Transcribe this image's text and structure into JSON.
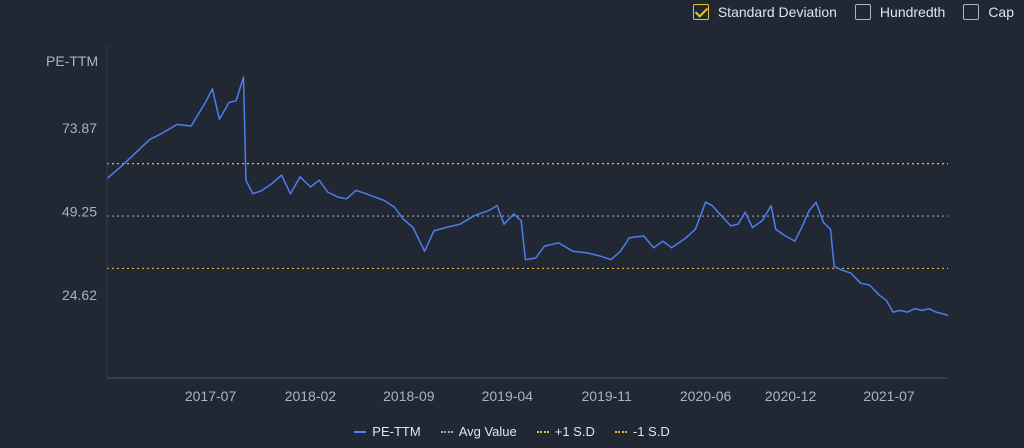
{
  "toggles": [
    {
      "label": "Standard Deviation",
      "checked": true
    },
    {
      "label": "Hundredth",
      "checked": false
    },
    {
      "label": "Cap",
      "checked": false
    }
  ],
  "colors": {
    "background": "#212833",
    "pe_line": "#4d7dee",
    "avg_line": "#a0a6b0",
    "plus_sd": "#d6c520",
    "minus_sd": "#e0b53a"
  },
  "legend": [
    {
      "label": "PE-TTM",
      "style": "solid",
      "color": "#4d7dee"
    },
    {
      "label": "Avg Value",
      "style": "dotted",
      "color": "#a0a6b0"
    },
    {
      "label": "+1 S.D",
      "style": "dotted",
      "color": "#d6c520"
    },
    {
      "label": "-1 S.D",
      "style": "dotted",
      "color": "#e0b53a"
    }
  ],
  "chart_data": {
    "type": "line",
    "title": "",
    "ylabel": "PE-TTM",
    "xlabel": "",
    "y_ticks": [
      24.62,
      49.25,
      73.87
    ],
    "y_tick_labels": [
      "24.62",
      "49.25",
      "73.87"
    ],
    "x_tick_labels": [
      "2017-07",
      "2018-02",
      "2018-09",
      "2019-04",
      "2019-11",
      "2020-06",
      "2020-12",
      "2021-07"
    ],
    "ylim": [
      0,
      98.49
    ],
    "reference_lines": {
      "avg": 47.9,
      "plus_1_sd": 63.4,
      "minus_1_sd": 32.4
    },
    "grid": false,
    "series": [
      {
        "name": "PE-TTM",
        "points": [
          [
            "2016-11-20",
            59.0
          ],
          [
            "2016-12-20",
            62.5
          ],
          [
            "2017-01-20",
            66.5
          ],
          [
            "2017-02-20",
            70.5
          ],
          [
            "2017-03-20",
            72.5
          ],
          [
            "2017-04-20",
            75.0
          ],
          [
            "2017-05-20",
            74.5
          ],
          [
            "2017-06-20",
            81.5
          ],
          [
            "2017-07-05",
            85.5
          ],
          [
            "2017-07-20",
            76.5
          ],
          [
            "2017-08-10",
            81.5
          ],
          [
            "2017-08-25",
            82.0
          ],
          [
            "2017-09-10",
            89.0
          ],
          [
            "2017-09-15",
            58.5
          ],
          [
            "2017-09-30",
            54.5
          ],
          [
            "2017-10-20",
            55.5
          ],
          [
            "2017-11-10",
            57.5
          ],
          [
            "2017-12-01",
            60.0
          ],
          [
            "2017-12-20",
            54.5
          ],
          [
            "2018-01-10",
            59.5
          ],
          [
            "2018-02-01",
            56.5
          ],
          [
            "2018-02-20",
            58.5
          ],
          [
            "2018-03-10",
            55.0
          ],
          [
            "2018-04-01",
            53.5
          ],
          [
            "2018-04-20",
            53.0
          ],
          [
            "2018-05-10",
            55.5
          ],
          [
            "2018-06-01",
            54.5
          ],
          [
            "2018-06-20",
            53.5
          ],
          [
            "2018-07-10",
            52.5
          ],
          [
            "2018-08-01",
            50.5
          ],
          [
            "2018-08-20",
            47.0
          ],
          [
            "2018-09-10",
            44.5
          ],
          [
            "2018-10-05",
            37.5
          ],
          [
            "2018-10-25",
            43.5
          ],
          [
            "2018-11-20",
            44.5
          ],
          [
            "2018-12-20",
            45.5
          ],
          [
            "2019-01-20",
            48.0
          ],
          [
            "2019-02-20",
            49.5
          ],
          [
            "2019-03-10",
            51.0
          ],
          [
            "2019-03-25",
            45.5
          ],
          [
            "2019-04-15",
            48.5
          ],
          [
            "2019-05-01",
            46.5
          ],
          [
            "2019-05-10",
            35.0
          ],
          [
            "2019-06-01",
            35.5
          ],
          [
            "2019-06-20",
            39.0
          ],
          [
            "2019-07-20",
            40.0
          ],
          [
            "2019-08-20",
            37.5
          ],
          [
            "2019-09-20",
            37.0
          ],
          [
            "2019-10-20",
            36.0
          ],
          [
            "2019-11-10",
            35.0
          ],
          [
            "2019-12-01",
            37.5
          ],
          [
            "2019-12-20",
            41.5
          ],
          [
            "2020-01-20",
            42.0
          ],
          [
            "2020-02-10",
            38.5
          ],
          [
            "2020-03-01",
            40.5
          ],
          [
            "2020-03-20",
            38.5
          ],
          [
            "2020-04-20",
            41.5
          ],
          [
            "2020-05-10",
            44.0
          ],
          [
            "2020-06-01",
            52.0
          ],
          [
            "2020-06-15",
            51.0
          ],
          [
            "2020-07-05",
            48.0
          ],
          [
            "2020-07-25",
            45.0
          ],
          [
            "2020-08-10",
            45.5
          ],
          [
            "2020-08-25",
            49.0
          ],
          [
            "2020-09-10",
            44.5
          ],
          [
            "2020-10-01",
            46.5
          ],
          [
            "2020-10-20",
            51.0
          ],
          [
            "2020-10-30",
            44.0
          ],
          [
            "2020-11-20",
            42.0
          ],
          [
            "2020-12-10",
            40.5
          ],
          [
            "2020-12-25",
            44.5
          ],
          [
            "2021-01-10",
            49.5
          ],
          [
            "2021-01-25",
            52.0
          ],
          [
            "2021-02-10",
            46.0
          ],
          [
            "2021-02-25",
            44.0
          ],
          [
            "2021-03-05",
            33.0
          ],
          [
            "2021-03-20",
            32.0
          ],
          [
            "2021-04-10",
            31.0
          ],
          [
            "2021-05-01",
            28.0
          ],
          [
            "2021-05-20",
            27.5
          ],
          [
            "2021-06-10",
            24.5
          ],
          [
            "2021-06-25",
            23.0
          ],
          [
            "2021-07-10",
            19.5
          ],
          [
            "2021-07-25",
            20.0
          ],
          [
            "2021-08-10",
            19.5
          ],
          [
            "2021-08-25",
            20.5
          ],
          [
            "2021-09-10",
            20.0
          ],
          [
            "2021-09-25",
            20.5
          ],
          [
            "2021-10-10",
            19.5
          ],
          [
            "2021-10-25",
            19.0
          ],
          [
            "2021-11-05",
            18.5
          ]
        ]
      }
    ]
  }
}
